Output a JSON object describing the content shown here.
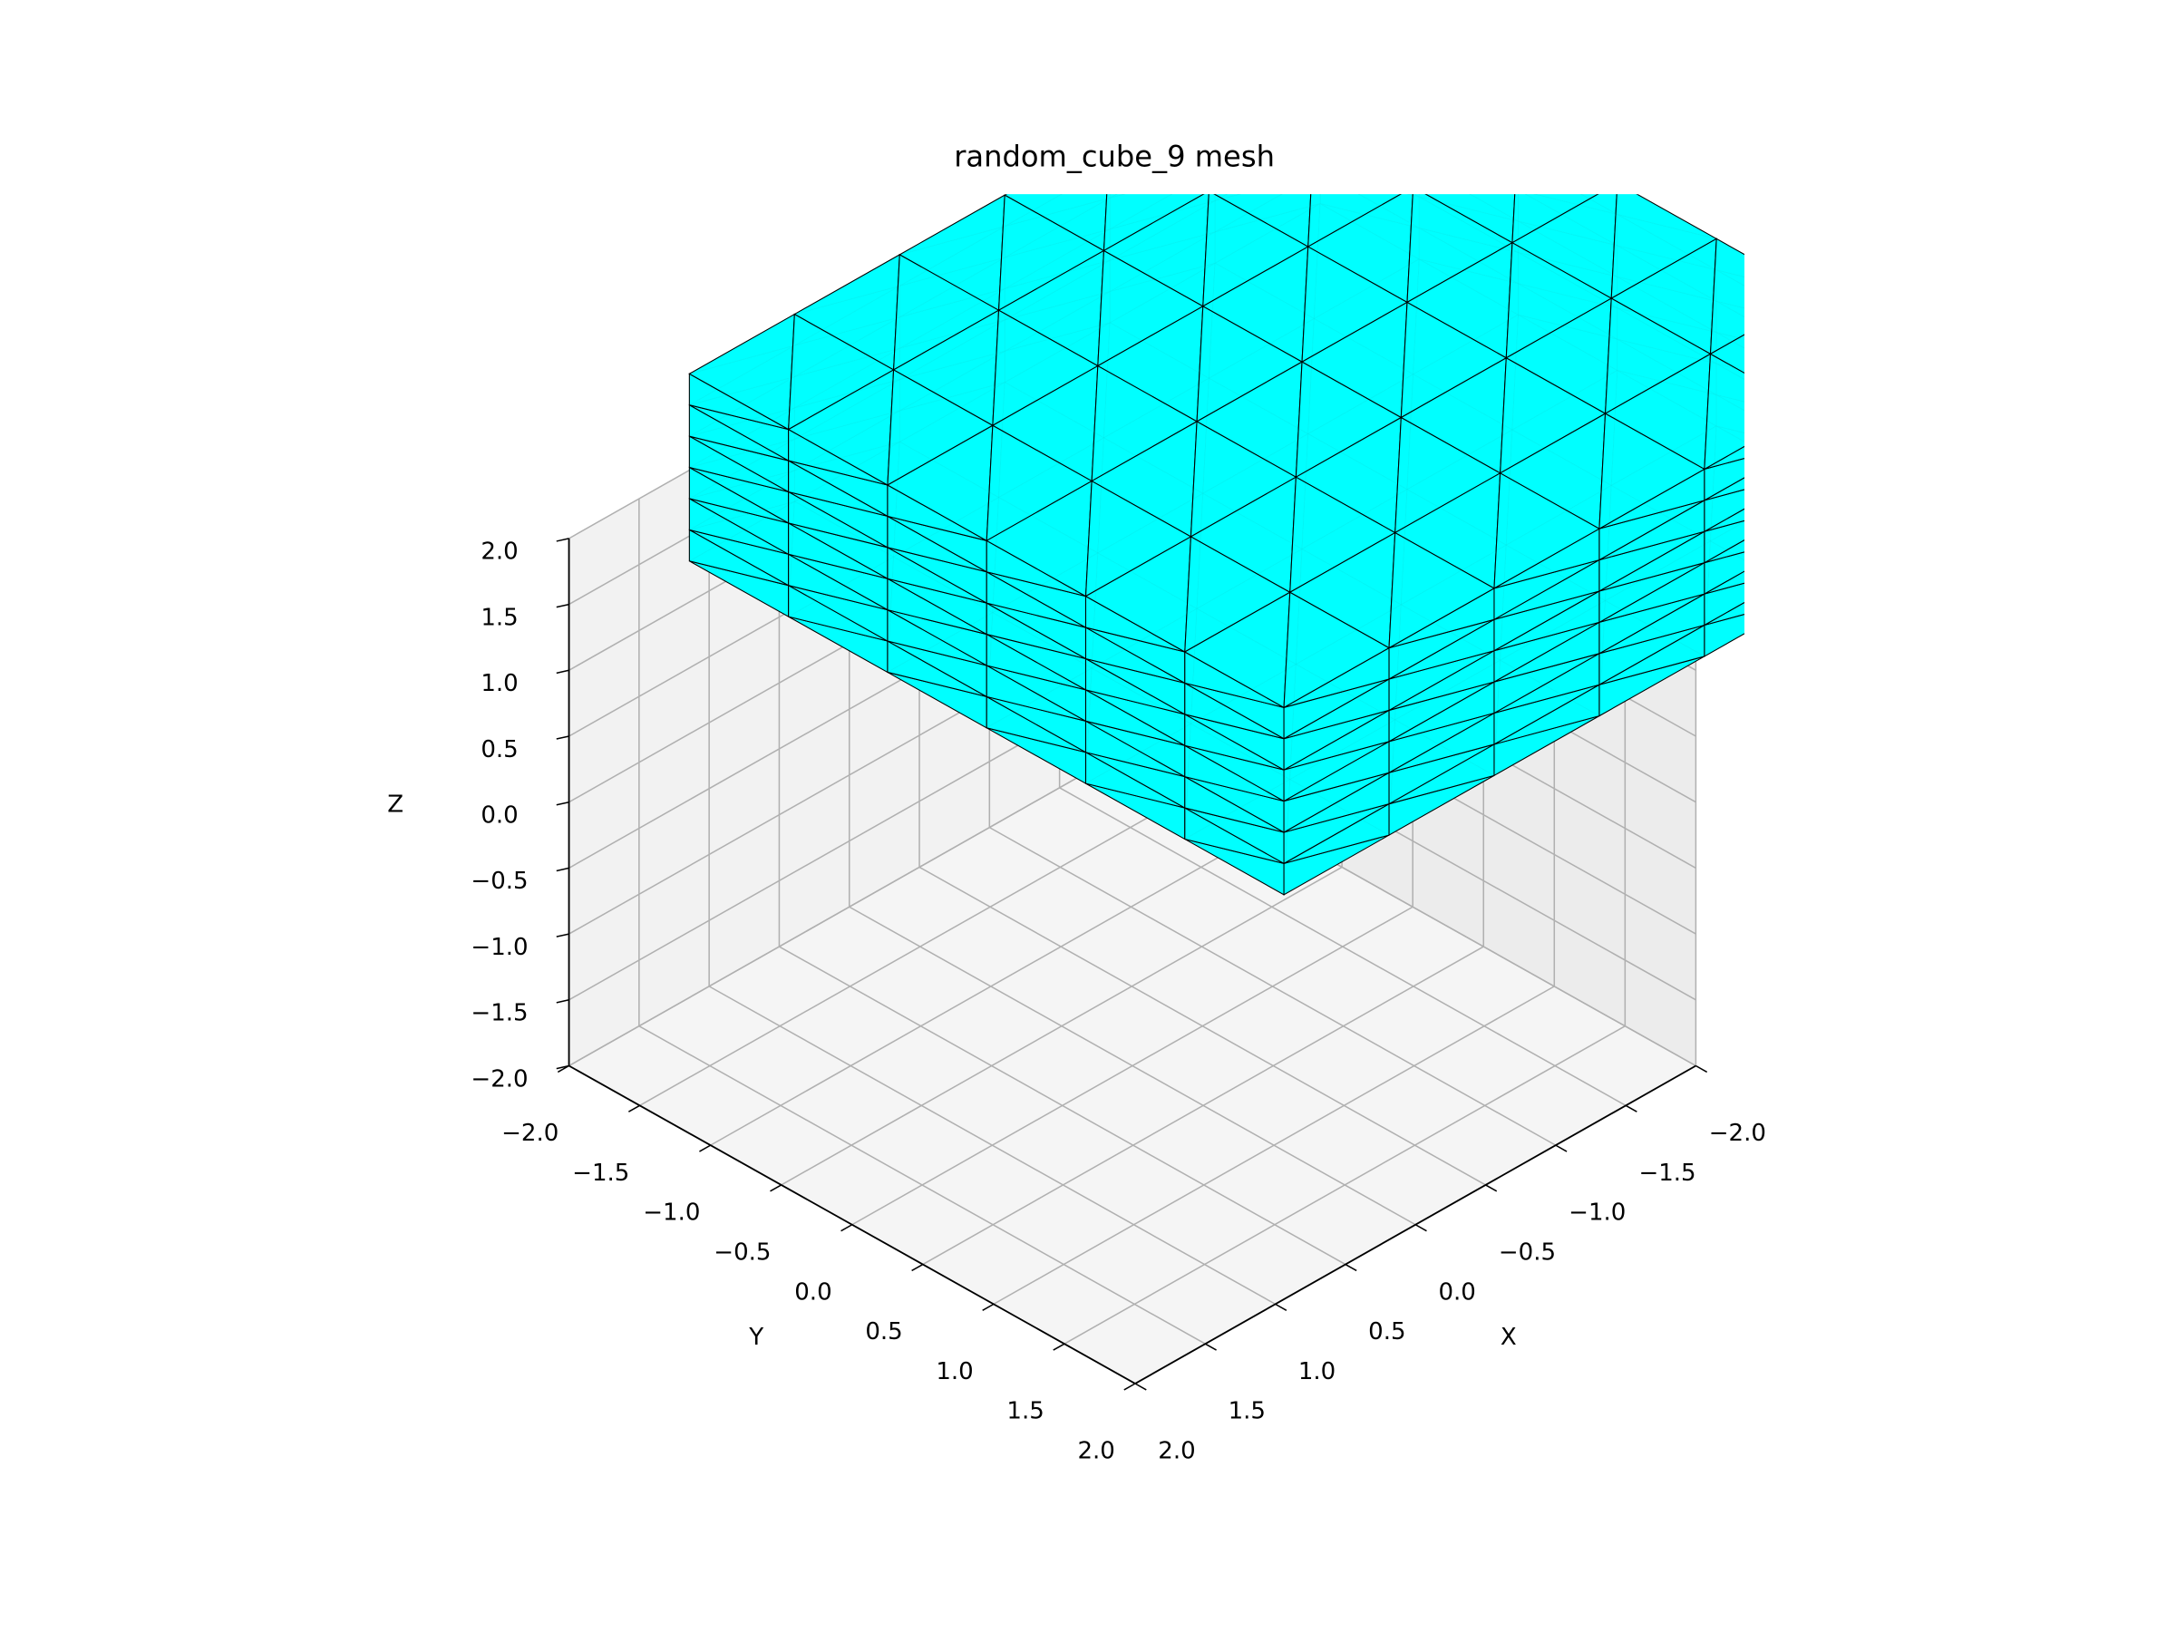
{
  "chart_data": {
    "type": "mesh3d",
    "title": "random_cube_9 mesh",
    "xlabel": "X",
    "ylabel": "Y",
    "zlabel": "Z",
    "xlim": [
      -2,
      2
    ],
    "ylim": [
      -2,
      2
    ],
    "zlim": [
      -2,
      2
    ],
    "xticks": [
      {
        "value": -2,
        "label": "−2.0"
      },
      {
        "value": -1.5,
        "label": "−1.5"
      },
      {
        "value": -1,
        "label": "−1.0"
      },
      {
        "value": -0.5,
        "label": "−0.5"
      },
      {
        "value": 0,
        "label": "0.0"
      },
      {
        "value": 0.5,
        "label": "0.5"
      },
      {
        "value": 1,
        "label": "1.0"
      },
      {
        "value": 1.5,
        "label": "1.5"
      },
      {
        "value": 2,
        "label": "2.0"
      }
    ],
    "yticks": [
      {
        "value": -2,
        "label": "−2.0"
      },
      {
        "value": -1.5,
        "label": "−1.5"
      },
      {
        "value": -1,
        "label": "−1.0"
      },
      {
        "value": -0.5,
        "label": "−0.5"
      },
      {
        "value": 0,
        "label": "0.0"
      },
      {
        "value": 0.5,
        "label": "0.5"
      },
      {
        "value": 1,
        "label": "1.0"
      },
      {
        "value": 1.5,
        "label": "1.5"
      },
      {
        "value": 2,
        "label": "2.0"
      }
    ],
    "zticks": [
      {
        "value": -2,
        "label": "−2.0"
      },
      {
        "value": -1.5,
        "label": "−1.5"
      },
      {
        "value": -1,
        "label": "−1.0"
      },
      {
        "value": -0.5,
        "label": "−0.5"
      },
      {
        "value": 0,
        "label": "0.0"
      },
      {
        "value": 0.5,
        "label": "0.5"
      },
      {
        "value": 1,
        "label": "1.0"
      },
      {
        "value": 1.5,
        "label": "1.5"
      },
      {
        "value": 2,
        "label": "2.0"
      }
    ],
    "grid": true,
    "mesh": {
      "x": [
        -3.46,
        1.04
      ],
      "y": [
        -2.1,
        2.1
      ],
      "z": [
        1.19,
        2.61
      ],
      "divisions": [
        6,
        6,
        6
      ],
      "color": "#00ffff",
      "edgecolor": "#000000"
    }
  }
}
